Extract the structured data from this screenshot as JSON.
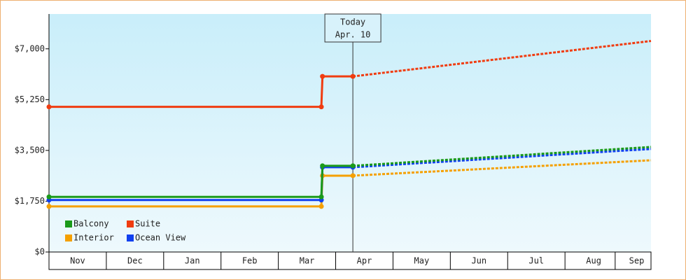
{
  "chart_data": {
    "type": "line",
    "annotation": {
      "x": 5.3,
      "lines": [
        "Today",
        "Apr. 10"
      ]
    },
    "x": [
      0,
      4.75,
      4.77,
      5.3
    ],
    "projection_x": [
      10.5
    ],
    "series": [
      {
        "name": "Balcony",
        "color": "#1a9a1a",
        "values": [
          1900,
          1900,
          2970,
          2970
        ],
        "projection": [
          3620
        ]
      },
      {
        "name": "Suite",
        "color": "#f03c10",
        "values": [
          5000,
          5000,
          6050,
          6050
        ],
        "projection": [
          7270
        ]
      },
      {
        "name": "Interior",
        "color": "#f5a000",
        "values": [
          1570,
          1570,
          2630,
          2630
        ],
        "projection": [
          3160
        ]
      },
      {
        "name": "Ocean View",
        "color": "#1040f0",
        "values": [
          1790,
          1790,
          2920,
          2920
        ],
        "projection": [
          3550
        ]
      }
    ],
    "xlim": [
      0,
      10.5
    ],
    "xticks": [
      {
        "value": 0.5,
        "label": "Nov"
      },
      {
        "value": 1.5,
        "label": "Dec"
      },
      {
        "value": 2.5,
        "label": "Jan"
      },
      {
        "value": 3.5,
        "label": "Feb"
      },
      {
        "value": 4.5,
        "label": "Mar"
      },
      {
        "value": 5.5,
        "label": "Apr"
      },
      {
        "value": 6.5,
        "label": "May"
      },
      {
        "value": 7.5,
        "label": "Jun"
      },
      {
        "value": 8.5,
        "label": "Jul"
      },
      {
        "value": 9.5,
        "label": "Aug"
      },
      {
        "value": 10.25,
        "label": "Sep"
      }
    ],
    "ylim": [
      0,
      8200
    ],
    "yticks": [
      {
        "value": 0,
        "label": "$0"
      },
      {
        "value": 1750,
        "label": "$1,750"
      },
      {
        "value": 3500,
        "label": "$3,500"
      },
      {
        "value": 5250,
        "label": "$5,250"
      },
      {
        "value": 7000,
        "label": "$7,000"
      }
    ],
    "legend": "bottom-left"
  }
}
